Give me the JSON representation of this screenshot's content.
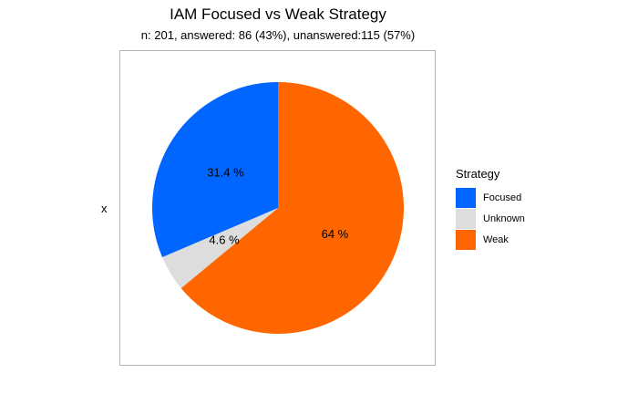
{
  "chart_data": {
    "type": "pie",
    "title": "IAM Focused vs Weak Strategy",
    "subtitle": "n: 201, answered: 86 (43%), unanswered:115 (57%)",
    "ylabel": "x",
    "legend_title": "Strategy",
    "legend_position": "right",
    "slices": [
      {
        "name": "Focused",
        "value": 31.4,
        "label": "31.4 %",
        "color": "#0066ff"
      },
      {
        "name": "Unknown",
        "value": 4.6,
        "label": "4.6 %",
        "color": "#dddddd"
      },
      {
        "name": "Weak",
        "value": 64.0,
        "label": "64 %",
        "color": "#ff6600"
      }
    ]
  }
}
